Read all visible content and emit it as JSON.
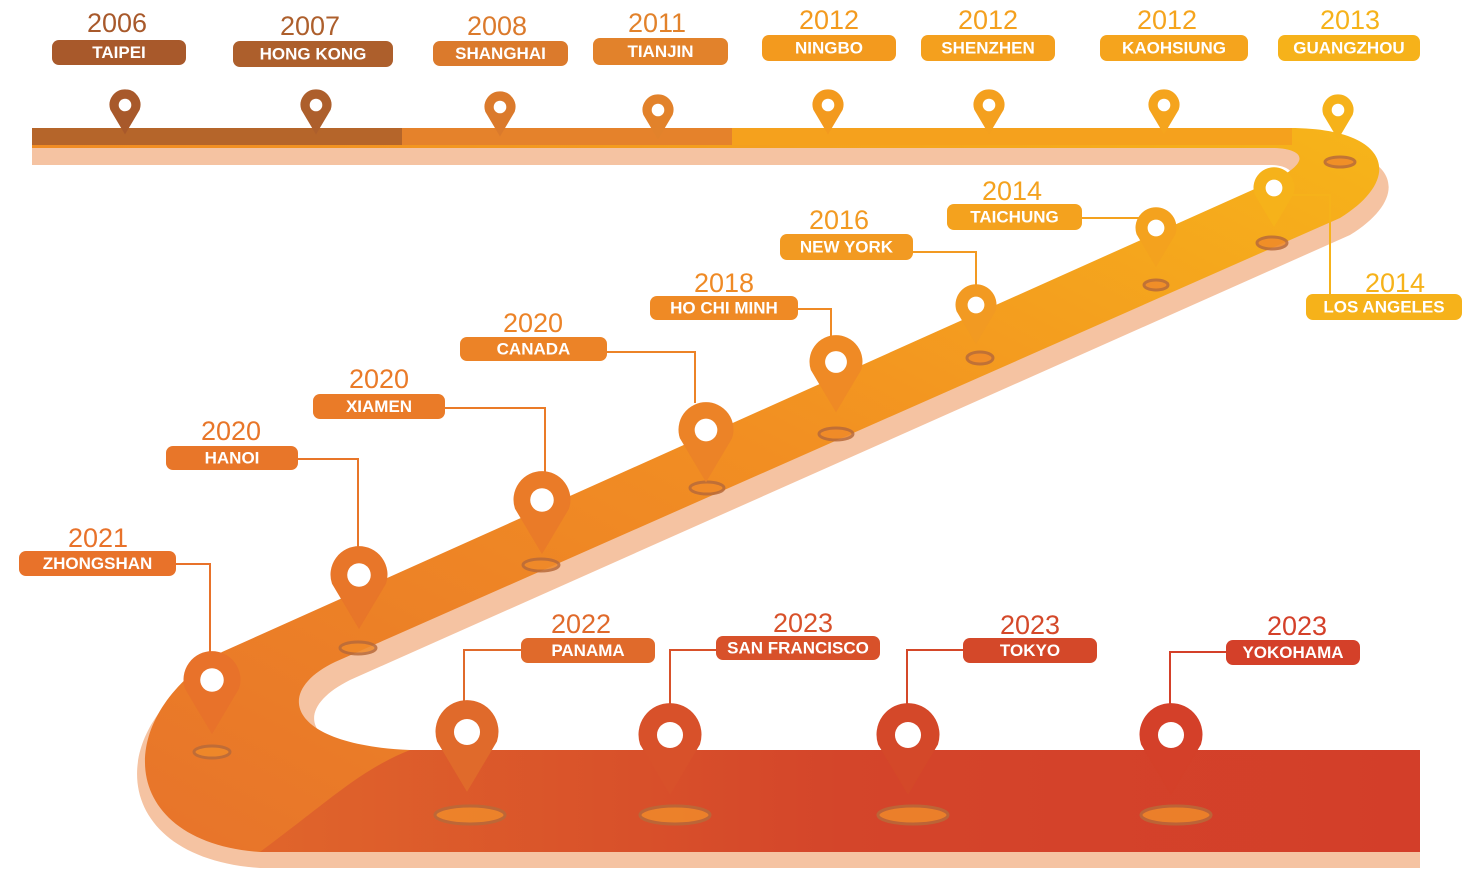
{
  "milestones": [
    {
      "year": "2006",
      "city": "TAIPEI"
    },
    {
      "year": "2007",
      "city": "HONG KONG"
    },
    {
      "year": "2008",
      "city": "SHANGHAI"
    },
    {
      "year": "2011",
      "city": "TIANJIN"
    },
    {
      "year": "2012",
      "city": "NINGBO"
    },
    {
      "year": "2012",
      "city": "SHENZHEN"
    },
    {
      "year": "2012",
      "city": "KAOHSIUNG"
    },
    {
      "year": "2013",
      "city": "GUANGZHOU"
    },
    {
      "year": "2014",
      "city": "TAICHUNG"
    },
    {
      "year": "2014",
      "city": "LOS ANGELES"
    },
    {
      "year": "2016",
      "city": "NEW YORK"
    },
    {
      "year": "2018",
      "city": "HO CHI MINH"
    },
    {
      "year": "2020",
      "city": "CANADA"
    },
    {
      "year": "2020",
      "city": "XIAMEN"
    },
    {
      "year": "2020",
      "city": "HANOI"
    },
    {
      "year": "2021",
      "city": "ZHONGSHAN"
    },
    {
      "year": "2022",
      "city": "PANAMA"
    },
    {
      "year": "2023",
      "city": "SAN FRANCISCO"
    },
    {
      "year": "2023",
      "city": "TOKYO"
    },
    {
      "year": "2023",
      "city": "YOKOHAMA"
    }
  ]
}
